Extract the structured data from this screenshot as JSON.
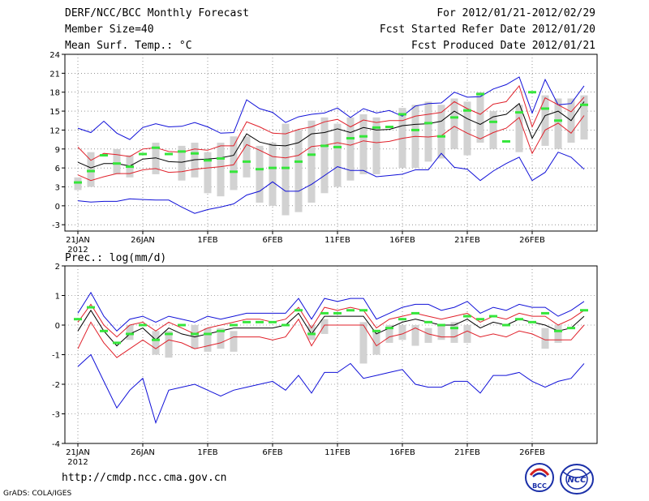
{
  "header": {
    "title": "DERF/NCC/BCC Monthly Forecast",
    "member_size": "Member Size=40",
    "variable": "Mean Surf. Temp.: °C",
    "period": "For 2012/01/21-2012/02/29",
    "started": "Fcst Started Refer Date 2012/01/20",
    "produced": "Fcst Produced Date 2012/01/21"
  },
  "footer": {
    "url": "http://cmdp.ncc.cma.gov.cn",
    "credit": "GrADS: COLA/IGES",
    "logo_left_text": "BCC",
    "logo_right_text": "NCC"
  },
  "colors": {
    "mean": "#000000",
    "spread": "#e0202a",
    "extreme": "#1010d8",
    "obs": "#35e63b",
    "box": "#d2d2d2"
  },
  "chart_data": [
    {
      "type": "line",
      "title": "Mean Surf. Temp.: °C",
      "x_ticks": [
        "21JAN",
        "26JAN",
        "1FEB",
        "6FEB",
        "11FEB",
        "16FEB",
        "21FEB",
        "26FEB"
      ],
      "x_tick_days": [
        1,
        6,
        11,
        16,
        21,
        26,
        31,
        36
      ],
      "x_year_label": "2012",
      "ylim": [
        -4,
        24
      ],
      "y_ticks": [
        -3,
        0,
        3,
        6,
        9,
        12,
        15,
        18,
        21,
        24
      ],
      "days": [
        1,
        2,
        3,
        4,
        5,
        6,
        7,
        8,
        9,
        10,
        11,
        12,
        13,
        14,
        15,
        16,
        17,
        18,
        19,
        20,
        21,
        22,
        23,
        24,
        25,
        26,
        27,
        28,
        29,
        30,
        31,
        32,
        33,
        34,
        35,
        36,
        37,
        38,
        39,
        40
      ],
      "series": [
        {
          "name": "ensemble max",
          "values": [
            12.3,
            11.6,
            13.4,
            11.5,
            10.5,
            12.4,
            13.0,
            12.5,
            12.6,
            13.2,
            12.5,
            11.5,
            11.6,
            16.8,
            15.4,
            14.8,
            13.2,
            14.1,
            14.5,
            14.7,
            15.5,
            14.0,
            15.4,
            14.7,
            15.1,
            14.2,
            15.8,
            16.2,
            16.3,
            18.0,
            17.2,
            17.3,
            18.5,
            19.2,
            20.4,
            14.7,
            20.0,
            16.0,
            16.2,
            19.0
          ]
        },
        {
          "name": "upper spread",
          "values": [
            9.3,
            7.2,
            8.3,
            8.1,
            7.8,
            9.0,
            9.2,
            8.6,
            8.5,
            9.0,
            8.8,
            9.5,
            9.5,
            13.3,
            12.5,
            11.5,
            11.4,
            12.1,
            12.5,
            13.3,
            13.7,
            12.5,
            13.6,
            13.2,
            13.5,
            13.5,
            14.2,
            14.5,
            14.8,
            16.5,
            15.4,
            14.5,
            16.1,
            16.5,
            19.0,
            12.5,
            17.1,
            16.0,
            14.9,
            17.2
          ]
        },
        {
          "name": "ensemble mean",
          "values": [
            6.9,
            6.0,
            6.7,
            6.7,
            6.3,
            7.4,
            7.6,
            7.0,
            6.9,
            7.3,
            7.4,
            7.6,
            8.0,
            11.4,
            10.1,
            9.6,
            9.5,
            10.0,
            11.4,
            11.6,
            12.2,
            11.6,
            12.4,
            12.0,
            12.1,
            12.7,
            12.9,
            13.0,
            13.4,
            15.0,
            13.8,
            12.9,
            14.1,
            14.5,
            16.2,
            10.7,
            14.3,
            15.0,
            13.5,
            16.5
          ]
        },
        {
          "name": "lower spread",
          "values": [
            4.9,
            4.0,
            4.6,
            5.1,
            5.1,
            5.7,
            5.9,
            5.3,
            5.4,
            5.8,
            6.0,
            6.2,
            6.5,
            9.7,
            8.8,
            7.8,
            7.6,
            8.0,
            9.4,
            9.6,
            10.0,
            9.6,
            10.3,
            10.0,
            10.2,
            10.7,
            11.0,
            10.9,
            11.1,
            12.6,
            11.5,
            10.6,
            11.6,
            12.3,
            14.0,
            8.3,
            12.0,
            13.1,
            11.5,
            14.3
          ]
        },
        {
          "name": "ensemble min",
          "values": [
            0.8,
            0.6,
            0.7,
            0.7,
            1.1,
            1.0,
            0.9,
            0.9,
            -0.2,
            -1.2,
            -0.6,
            -0.2,
            0.3,
            1.7,
            2.3,
            3.8,
            2.3,
            2.3,
            3.4,
            4.8,
            6.2,
            5.6,
            5.6,
            4.6,
            4.8,
            5.0,
            5.7,
            5.7,
            8.3,
            6.1,
            5.8,
            4.0,
            5.5,
            6.7,
            7.7,
            4.0,
            5.3,
            8.5,
            7.7,
            5.8
          ]
        }
      ],
      "observed": [
        3.7,
        5.5,
        8.0,
        6.7,
        6.2,
        8.2,
        9.2,
        8.2,
        8.6,
        8.3,
        7.2,
        7.5,
        5.4,
        7.0,
        5.8,
        6.0,
        6.0,
        7.0,
        8.1,
        9.5,
        9.3,
        10.7,
        11.0,
        12.4,
        12.5,
        14.5,
        12.0,
        13.1,
        11.0,
        14.0,
        15.1,
        17.7,
        13.3,
        10.2,
        14.8,
        18.0,
        15.4,
        13.5,
        16.0
      ],
      "observed_days": [
        1,
        2,
        3,
        4,
        5,
        6,
        7,
        8,
        9,
        10,
        11,
        12,
        13,
        14,
        15,
        16,
        17,
        18,
        19,
        20,
        21,
        22,
        23,
        24,
        25,
        26,
        27,
        28,
        29,
        30,
        31,
        32,
        33,
        34,
        35,
        36,
        37,
        38,
        40
      ],
      "boxes": [
        {
          "day": 1,
          "low": 2.5,
          "high": 4.5
        },
        {
          "day": 2,
          "low": 3.0,
          "high": 8.5
        },
        {
          "day": 4,
          "low": 5.0,
          "high": 9.0
        },
        {
          "day": 5,
          "low": 4.5,
          "high": 8.0
        },
        {
          "day": 7,
          "low": 5.0,
          "high": 10.0
        },
        {
          "day": 9,
          "low": 4.0,
          "high": 9.5
        },
        {
          "day": 10,
          "low": 4.5,
          "high": 10.0
        },
        {
          "day": 11,
          "low": 2.0,
          "high": 8.5
        },
        {
          "day": 12,
          "low": 1.5,
          "high": 10.0
        },
        {
          "day": 13,
          "low": 2.5,
          "high": 11.0
        },
        {
          "day": 14,
          "low": 4.5,
          "high": 11.0
        },
        {
          "day": 15,
          "low": 0.5,
          "high": 9.5
        },
        {
          "day": 16,
          "low": 0.0,
          "high": 10.0
        },
        {
          "day": 17,
          "low": -1.5,
          "high": 13.0
        },
        {
          "day": 18,
          "low": -1.0,
          "high": 12.0
        },
        {
          "day": 19,
          "low": 0.5,
          "high": 13.5
        },
        {
          "day": 20,
          "low": 2.0,
          "high": 14.0
        },
        {
          "day": 21,
          "low": 3.0,
          "high": 13.0
        },
        {
          "day": 22,
          "low": 4.0,
          "high": 14.0
        },
        {
          "day": 23,
          "low": 5.0,
          "high": 14.5
        },
        {
          "day": 24,
          "low": 5.0,
          "high": 14.0
        },
        {
          "day": 26,
          "low": 6.0,
          "high": 15.5
        },
        {
          "day": 27,
          "low": 6.0,
          "high": 16.0
        },
        {
          "day": 28,
          "low": 7.0,
          "high": 16.5
        },
        {
          "day": 29,
          "low": 7.5,
          "high": 16.0
        },
        {
          "day": 30,
          "low": 9.0,
          "high": 17.0
        },
        {
          "day": 31,
          "low": 8.0,
          "high": 16.5
        },
        {
          "day": 32,
          "low": 10.0,
          "high": 18.0
        },
        {
          "day": 33,
          "low": 9.0,
          "high": 15.0
        },
        {
          "day": 35,
          "low": 8.5,
          "high": 16.0
        },
        {
          "day": 37,
          "low": 9.5,
          "high": 17.5
        },
        {
          "day": 38,
          "low": 9.0,
          "high": 17.0
        },
        {
          "day": 39,
          "low": 10.0,
          "high": 17.0
        },
        {
          "day": 40,
          "low": 10.5,
          "high": 17.5
        }
      ]
    },
    {
      "type": "line",
      "title": "Prec.: log(mm/d)",
      "x_ticks": [
        "21JAN",
        "26JAN",
        "1FEB",
        "6FEB",
        "11FEB",
        "16FEB",
        "21FEB",
        "26FEB"
      ],
      "x_tick_days": [
        1,
        6,
        11,
        16,
        21,
        26,
        31,
        36
      ],
      "x_year_label": "2012",
      "ylim": [
        -4,
        2
      ],
      "y_ticks": [
        -4,
        -3,
        -2,
        -1,
        0,
        1,
        2
      ],
      "days": [
        1,
        2,
        3,
        4,
        5,
        6,
        7,
        8,
        9,
        10,
        11,
        12,
        13,
        14,
        15,
        16,
        17,
        18,
        19,
        20,
        21,
        22,
        23,
        24,
        25,
        26,
        27,
        28,
        29,
        30,
        31,
        32,
        33,
        34,
        35,
        36,
        37,
        38,
        39,
        40
      ],
      "series": [
        {
          "name": "ensemble max",
          "values": [
            0.4,
            1.1,
            0.3,
            -0.2,
            0.2,
            0.3,
            0.1,
            0.3,
            0.2,
            0.1,
            0.3,
            0.2,
            0.3,
            0.4,
            0.4,
            0.4,
            0.4,
            0.9,
            0.2,
            0.9,
            0.8,
            0.9,
            0.9,
            0.2,
            0.4,
            0.6,
            0.7,
            0.7,
            0.5,
            0.6,
            0.8,
            0.4,
            0.6,
            0.5,
            0.7,
            0.6,
            0.6,
            0.3,
            0.5,
            0.8
          ]
        },
        {
          "name": "upper spread",
          "values": [
            0.1,
            0.7,
            0.0,
            -0.4,
            0.0,
            0.1,
            -0.2,
            0.1,
            -0.1,
            -0.3,
            -0.1,
            0.0,
            0.1,
            0.2,
            0.2,
            0.1,
            0.2,
            0.6,
            -0.1,
            0.6,
            0.5,
            0.6,
            0.5,
            -0.1,
            0.2,
            0.3,
            0.4,
            0.3,
            0.2,
            0.3,
            0.4,
            0.1,
            0.3,
            0.2,
            0.4,
            0.3,
            0.3,
            0.0,
            0.2,
            0.5
          ]
        },
        {
          "name": "ensemble mean",
          "values": [
            -0.2,
            0.5,
            -0.2,
            -0.7,
            -0.3,
            -0.1,
            -0.5,
            -0.1,
            -0.3,
            -0.4,
            -0.3,
            -0.2,
            -0.1,
            -0.1,
            -0.1,
            -0.1,
            0.0,
            0.4,
            -0.3,
            0.3,
            0.3,
            0.3,
            0.3,
            -0.3,
            -0.1,
            0.1,
            0.2,
            0.1,
            0.0,
            0.0,
            0.2,
            -0.1,
            0.1,
            0.0,
            0.2,
            0.1,
            0.0,
            -0.2,
            -0.1,
            0.3
          ]
        },
        {
          "name": "lower spread",
          "values": [
            -0.8,
            0.1,
            -0.6,
            -1.1,
            -0.8,
            -0.5,
            -0.8,
            -0.5,
            -0.6,
            -0.8,
            -0.7,
            -0.6,
            -0.4,
            -0.4,
            -0.4,
            -0.5,
            -0.4,
            0.2,
            -0.7,
            0.0,
            0.0,
            0.0,
            0.0,
            -0.7,
            -0.4,
            -0.3,
            -0.1,
            -0.3,
            -0.4,
            -0.4,
            -0.2,
            -0.4,
            -0.3,
            -0.4,
            -0.2,
            -0.3,
            -0.5,
            -0.5,
            -0.5,
            0.0
          ]
        },
        {
          "name": "ensemble min",
          "values": [
            -1.4,
            -1.0,
            -1.9,
            -2.8,
            -2.2,
            -1.8,
            -3.3,
            -2.2,
            -2.1,
            -2.0,
            -2.2,
            -2.4,
            -2.2,
            -2.1,
            -2.0,
            -1.9,
            -2.2,
            -1.7,
            -2.3,
            -1.6,
            -1.6,
            -1.3,
            -1.8,
            -1.7,
            -1.6,
            -1.5,
            -2.0,
            -2.1,
            -2.1,
            -1.9,
            -1.9,
            -2.3,
            -1.7,
            -1.7,
            -1.6,
            -1.9,
            -2.1,
            -1.9,
            -1.8,
            -1.3
          ]
        }
      ],
      "observed": [
        0.2,
        0.6,
        -0.2,
        -0.6,
        -0.3,
        0.0,
        -0.5,
        -0.3,
        0.0,
        -0.3,
        -0.3,
        -0.2,
        0.0,
        0.1,
        0.1,
        0.1,
        0.0,
        0.5,
        -0.3,
        0.4,
        0.4,
        0.5,
        0.5,
        -0.2,
        -0.1,
        0.2,
        0.4,
        0.1,
        0.0,
        -0.1,
        0.3,
        0.2,
        0.3,
        0.0,
        0.2,
        0.1,
        0.4,
        -0.2,
        -0.1,
        0.5
      ],
      "observed_days": [
        1,
        2,
        3,
        4,
        5,
        6,
        7,
        8,
        9,
        10,
        11,
        12,
        13,
        14,
        15,
        16,
        17,
        18,
        19,
        20,
        21,
        22,
        23,
        24,
        25,
        26,
        27,
        28,
        29,
        30,
        31,
        32,
        33,
        34,
        35,
        36,
        37,
        38,
        39,
        40
      ],
      "boxes": [
        {
          "day": 5,
          "low": -0.5,
          "high": 0.0
        },
        {
          "day": 7,
          "low": -1.0,
          "high": -0.2
        },
        {
          "day": 8,
          "low": -1.1,
          "high": -0.2
        },
        {
          "day": 10,
          "low": -0.8,
          "high": 0.0
        },
        {
          "day": 11,
          "low": -0.9,
          "high": -0.1
        },
        {
          "day": 12,
          "low": -0.8,
          "high": -0.1
        },
        {
          "day": 13,
          "low": -0.9,
          "high": -0.2
        },
        {
          "day": 19,
          "low": -0.5,
          "high": 0.0
        },
        {
          "day": 20,
          "low": -0.3,
          "high": 0.2
        },
        {
          "day": 23,
          "low": -1.3,
          "high": 0.1
        },
        {
          "day": 24,
          "low": -1.0,
          "high": -0.2
        },
        {
          "day": 25,
          "low": -0.6,
          "high": 0.0
        },
        {
          "day": 26,
          "low": -0.5,
          "high": 0.0
        },
        {
          "day": 27,
          "low": -0.7,
          "high": 0.0
        },
        {
          "day": 28,
          "low": -0.6,
          "high": -0.1
        },
        {
          "day": 29,
          "low": -0.5,
          "high": 0.0
        },
        {
          "day": 30,
          "low": -0.6,
          "high": 0.1
        },
        {
          "day": 31,
          "low": -0.6,
          "high": 0.0
        },
        {
          "day": 37,
          "low": -0.8,
          "high": -0.1
        },
        {
          "day": 38,
          "low": -0.6,
          "high": 0.0
        }
      ]
    }
  ]
}
